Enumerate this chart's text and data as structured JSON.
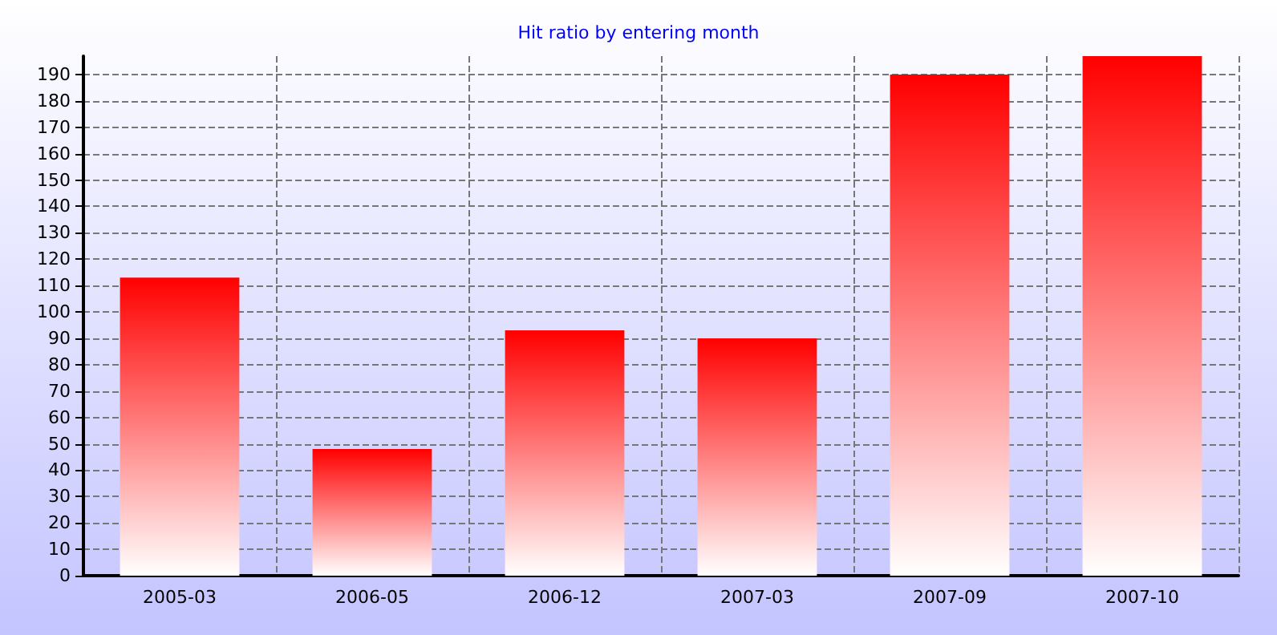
{
  "chart_data": {
    "type": "bar",
    "title": "Hit ratio by entering month",
    "categories": [
      "2005-03",
      "2006-05",
      "2006-12",
      "2007-03",
      "2007-09",
      "2007-10"
    ],
    "values": [
      113,
      48,
      93,
      90,
      190,
      197
    ],
    "color": "#ff0000",
    "ylim": [
      0,
      197
    ],
    "yticks": [
      0,
      10,
      20,
      30,
      40,
      50,
      60,
      70,
      80,
      90,
      100,
      110,
      120,
      130,
      140,
      150,
      160,
      170,
      180,
      190
    ],
    "grid": true
  }
}
